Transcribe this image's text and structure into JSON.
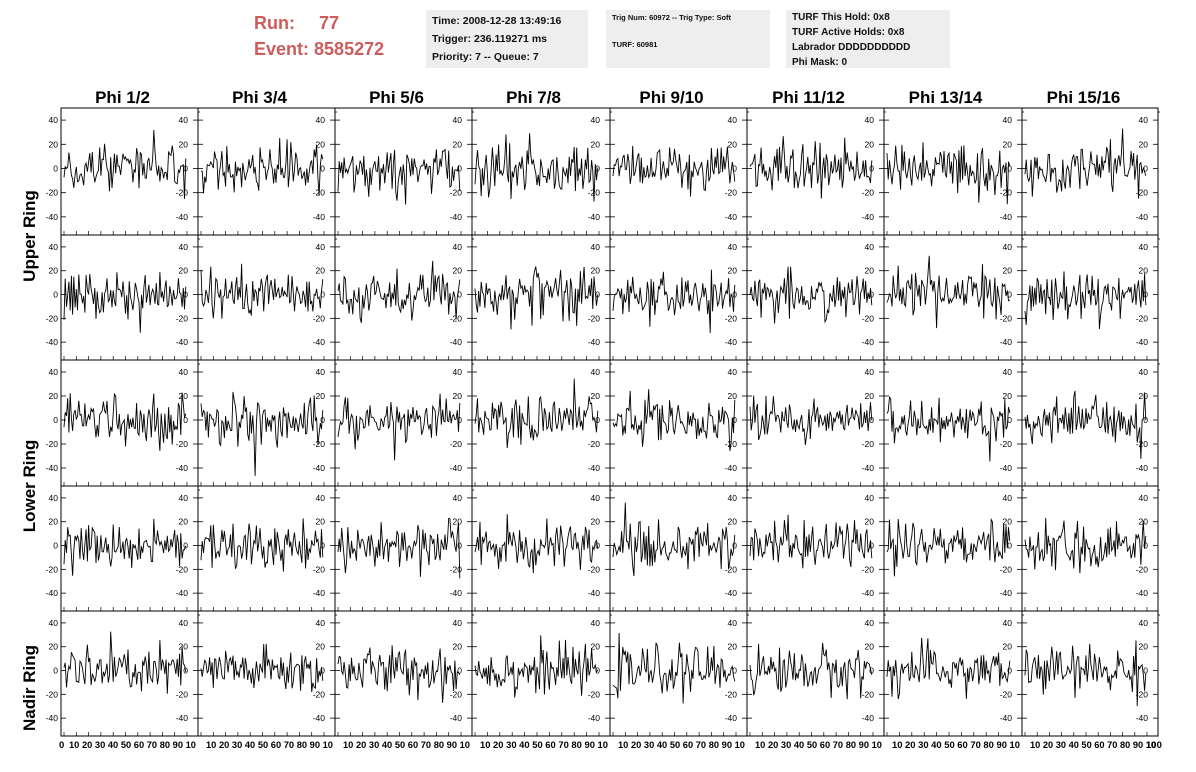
{
  "header": {
    "run_label": "Run:",
    "run_value": "77",
    "event_label": "Event:",
    "event_value": "8585272",
    "run_color": "#cd5c5c"
  },
  "info_time": {
    "line1": "Time: 2008-12-28 13:49:16",
    "line2": "Trigger: 236.119271 ms",
    "line3": "Priority: 7 -- Queue: 7"
  },
  "info_trig": {
    "line1": "Trig Num: 60972 -- Trig Type: Soft",
    "line2": "TURF: 60981"
  },
  "info_turf": {
    "line1": "TURF This Hold: 0x8",
    "line2": "TURF Active Holds: 0x8",
    "line3": "Labrador DDDDDDDDDD",
    "line4": "Phi Mask: 0"
  },
  "columns": [
    "Phi 1/2",
    "Phi 3/4",
    "Phi 5/6",
    "Phi 7/8",
    "Phi 9/10",
    "Phi 11/12",
    "Phi 13/14",
    "Phi 15/16"
  ],
  "row_groups": [
    {
      "label": "Upper Ring"
    },
    {
      "label": "Lower Ring"
    },
    {
      "label": "Nadir Ring"
    }
  ],
  "chart_data": {
    "type": "line",
    "description_rows": 5,
    "description_cols": 8,
    "xlim": [
      0,
      100
    ],
    "ylim": [
      -55,
      50
    ],
    "y_ticks": [
      "40",
      "20",
      "0",
      "-20",
      "-40"
    ],
    "x_tick_labels": [
      "0",
      "10",
      "20",
      "30",
      "40",
      "50",
      "60",
      "70",
      "80",
      "90",
      "100"
    ],
    "x_tick_strip": [
      "10 20 30 40 50 60 70 80 90 10"
    ],
    "samples_per_trace": 100,
    "noise_amplitude": 18,
    "line_color": "#000000",
    "grid": false
  }
}
